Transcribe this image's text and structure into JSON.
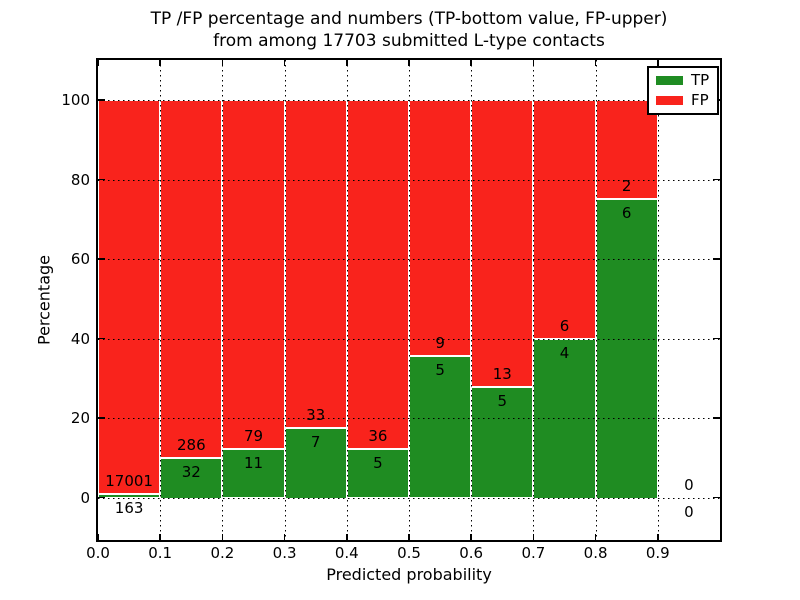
{
  "title": {
    "line1": "TP /FP percentage and numbers (TP-bottom value, FP-upper)",
    "line2": "from among 17703 submitted L-type contacts"
  },
  "axes": {
    "ylabel": "Percentage",
    "xlabel": "Predicted probability",
    "ytick_labels": [
      "0",
      "20",
      "40",
      "60",
      "80",
      "100"
    ],
    "ytick_values": [
      0,
      20,
      40,
      60,
      80,
      100
    ],
    "xtick_labels": [
      "0.0",
      "0.1",
      "0.2",
      "0.3",
      "0.4",
      "0.5",
      "0.6",
      "0.7",
      "0.8",
      "0.9"
    ],
    "xtick_values": [
      0.0,
      0.1,
      0.2,
      0.3,
      0.4,
      0.5,
      0.6,
      0.7,
      0.8,
      0.9
    ]
  },
  "legend": {
    "entries": [
      {
        "label": "TP",
        "color": "#1f8c22"
      },
      {
        "label": "FP",
        "color": "#f9231c"
      }
    ],
    "position": "upper right"
  },
  "colors": {
    "tp": "#1f8c22",
    "fp": "#f9231c",
    "grid": "#000000",
    "bar_edge": "#ffffff"
  },
  "chart_data": {
    "type": "bar",
    "stacked": true,
    "normalized_to_percent": true,
    "title": "TP /FP percentage and numbers (TP-bottom value, FP-upper) from among 17703 submitted L-type contacts",
    "xlabel": "Predicted probability",
    "ylabel": "Percentage",
    "bin_edges": [
      0.0,
      0.1,
      0.2,
      0.3,
      0.4,
      0.5,
      0.6,
      0.7,
      0.8,
      0.9,
      1.0
    ],
    "categories": [
      "0.0-0.1",
      "0.1-0.2",
      "0.2-0.3",
      "0.3-0.4",
      "0.4-0.5",
      "0.5-0.6",
      "0.6-0.7",
      "0.7-0.8",
      "0.8-0.9",
      "0.9-1.0"
    ],
    "series": [
      {
        "name": "TP",
        "color": "#1f8c22",
        "counts": [
          163,
          32,
          11,
          7,
          5,
          5,
          5,
          4,
          6,
          0
        ]
      },
      {
        "name": "FP",
        "color": "#f9231c",
        "counts": [
          17001,
          286,
          79,
          33,
          36,
          9,
          13,
          6,
          2,
          0
        ]
      }
    ],
    "tp_percent": [
      0.95,
      10.06,
      12.22,
      17.5,
      12.2,
      35.71,
      27.78,
      40.0,
      75.0,
      0.0
    ],
    "total_contacts": 17703,
    "ylim": [
      -10,
      110
    ],
    "xlim": [
      0.0,
      1.0
    ],
    "grid": "dotted",
    "legend_position": "upper right"
  }
}
